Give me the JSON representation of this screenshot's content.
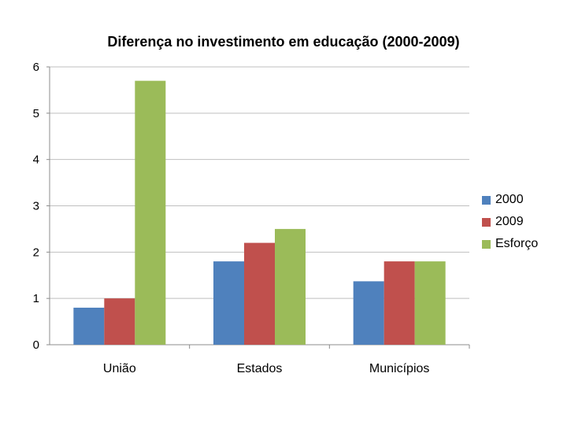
{
  "chart_data": {
    "type": "bar",
    "title": "Diferença no investimento em educação (2000-2009)",
    "categories": [
      "União",
      "Estados",
      "Municípios"
    ],
    "series": [
      {
        "name": "2000",
        "color": "#4f81bd",
        "values": [
          0.8,
          1.8,
          1.37
        ]
      },
      {
        "name": "2009",
        "color": "#c0504d",
        "values": [
          1.0,
          2.2,
          1.8
        ]
      },
      {
        "name": "Esforço",
        "color": "#9bbb59",
        "values": [
          5.7,
          2.5,
          1.8
        ]
      }
    ],
    "ylim": [
      0,
      6
    ],
    "yticks": [
      0,
      1,
      2,
      3,
      4,
      5,
      6
    ],
    "grid": true,
    "legend": "right"
  }
}
